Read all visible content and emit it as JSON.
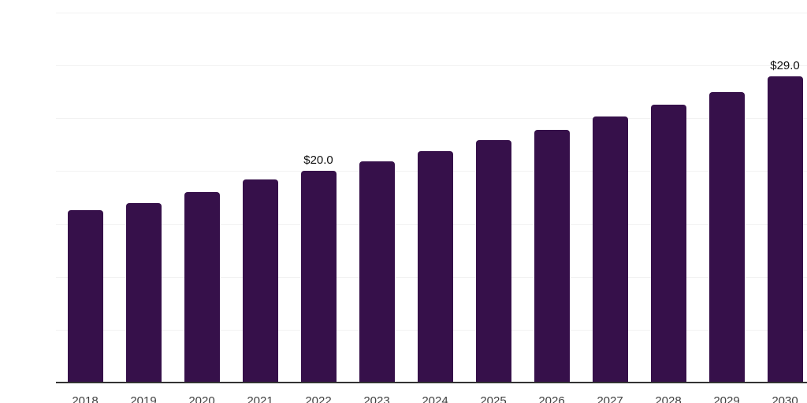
{
  "chart_data": {
    "type": "bar",
    "title": "",
    "xlabel": "",
    "ylabel": "",
    "categories": [
      "2018",
      "2019",
      "2020",
      "2021",
      "2022",
      "2023",
      "2024",
      "2025",
      "2026",
      "2027",
      "2028",
      "2029",
      "2030"
    ],
    "values": [
      16.3,
      17.0,
      18.0,
      19.2,
      20.0,
      20.9,
      21.9,
      22.9,
      23.9,
      25.2,
      26.3,
      27.5,
      29.0
    ],
    "bar_labels": [
      "",
      "",
      "",
      "",
      "$20.0",
      "",
      "",
      "",
      "",
      "",
      "",
      "",
      "$29.0"
    ],
    "ylim": [
      0,
      35
    ],
    "grid_step": 5,
    "grid": "horizontal-only",
    "legend_position": "none",
    "y_tick_labels_visible": false,
    "colors": {
      "bar": "#36104A",
      "background": "#FFFFFF",
      "gridline": "#F2F2F2",
      "axis_line": "#333333",
      "tick_label": "#404040",
      "value_label": "#111111"
    }
  }
}
